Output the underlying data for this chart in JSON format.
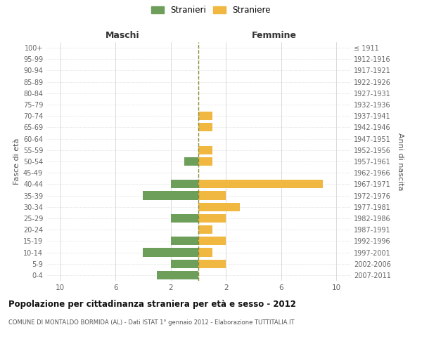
{
  "age_groups": [
    "0-4",
    "5-9",
    "10-14",
    "15-19",
    "20-24",
    "25-29",
    "30-34",
    "35-39",
    "40-44",
    "45-49",
    "50-54",
    "55-59",
    "60-64",
    "65-69",
    "70-74",
    "75-79",
    "80-84",
    "85-89",
    "90-94",
    "95-99",
    "100+"
  ],
  "birth_years": [
    "2007-2011",
    "2002-2006",
    "1997-2001",
    "1992-1996",
    "1987-1991",
    "1982-1986",
    "1977-1981",
    "1972-1976",
    "1967-1971",
    "1962-1966",
    "1957-1961",
    "1952-1956",
    "1947-1951",
    "1942-1946",
    "1937-1941",
    "1932-1936",
    "1927-1931",
    "1922-1926",
    "1917-1921",
    "1912-1916",
    "≤ 1911"
  ],
  "males": [
    3,
    2,
    4,
    2,
    0,
    2,
    0,
    4,
    2,
    0,
    1,
    0,
    0,
    0,
    0,
    0,
    0,
    0,
    0,
    0,
    0
  ],
  "females": [
    0,
    2,
    1,
    2,
    1,
    2,
    3,
    2,
    9,
    0,
    1,
    1,
    0,
    1,
    1,
    0,
    0,
    0,
    0,
    0,
    0
  ],
  "color_male": "#6d9e5a",
  "color_female": "#f0b840",
  "xlim": 11,
  "legend_male": "Stranieri",
  "legend_female": "Straniere",
  "header_left": "Maschi",
  "header_right": "Femmine",
  "ylabel_left": "Fasce di età",
  "ylabel_right": "Anni di nascita",
  "title": "Popolazione per cittadinanza straniera per età e sesso - 2012",
  "subtitle": "COMUNE DI MONTALDO BORMIDA (AL) - Dati ISTAT 1° gennaio 2012 - Elaborazione TUTTITALIA.IT",
  "bg_color": "#ffffff",
  "grid_color": "#cccccc",
  "bar_height": 0.75,
  "center_line_color": "#8b8b3a",
  "center_line_style": "--"
}
